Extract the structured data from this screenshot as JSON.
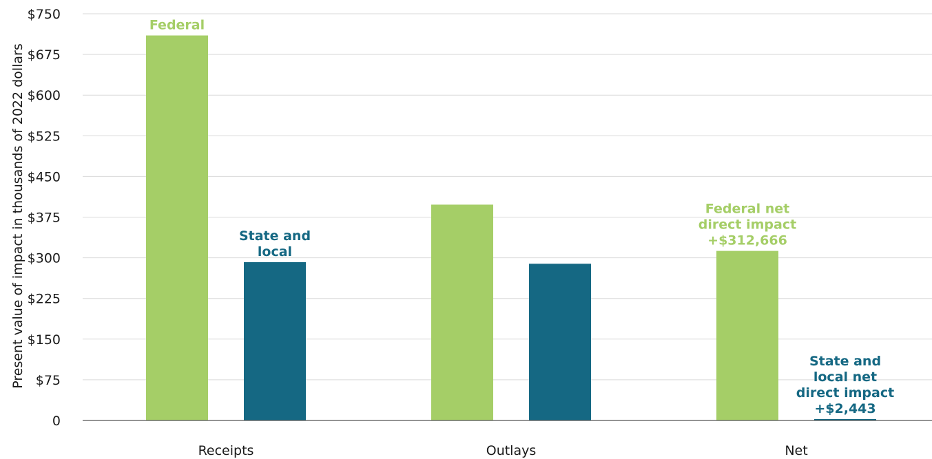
{
  "chart_data": {
    "type": "bar",
    "categories": [
      "Receipts",
      "Outlays",
      "Net"
    ],
    "series": [
      {
        "values": [
          710,
          398,
          312.666
        ]
      },
      {
        "values": [
          292,
          289,
          2.443
        ]
      }
    ],
    "colors": [
      "#a5ce67",
      "#156883"
    ],
    "ylabel": "Present value of impact in thousands of 2022 dollars",
    "ylim": [
      0,
      750
    ],
    "yticks": [
      0,
      75,
      150,
      225,
      300,
      375,
      450,
      525,
      600,
      675,
      750
    ],
    "ytick_labels": [
      "0",
      "$75",
      "$150",
      "$225",
      "$300",
      "$375",
      "$450",
      "$525",
      "$600",
      "$675",
      "$750"
    ],
    "grid": true,
    "annotations": [
      {
        "series": 0,
        "category": 0,
        "lines": [
          "Federal"
        ]
      },
      {
        "series": 1,
        "category": 0,
        "lines": [
          "State and",
          "local"
        ]
      },
      {
        "series": 0,
        "category": 2,
        "lines": [
          "Federal net",
          "direct impact",
          "+$312,666"
        ]
      },
      {
        "series": 1,
        "category": 2,
        "lines": [
          "State and",
          "local net",
          "direct impact",
          "+$2,443"
        ]
      }
    ]
  }
}
